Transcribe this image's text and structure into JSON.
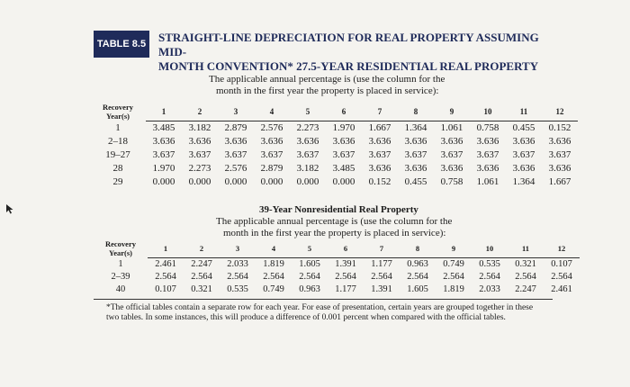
{
  "table_label": "TABLE 8.5",
  "title_line1": "STRAIGHT-LINE DEPRECIATION FOR REAL PROPERTY ASSUMING MID-",
  "title_line2": "MONTH CONVENTION* 27.5-YEAR RESIDENTIAL REAL PROPERTY",
  "residential": {
    "intro_line1": "The applicable annual percentage is (use the column for the",
    "intro_line2": "month in the first year the property is placed in service):",
    "stub_line1": "Recovery",
    "stub_line2": "Year(s)",
    "months": [
      "1",
      "2",
      "3",
      "4",
      "5",
      "6",
      "7",
      "8",
      "9",
      "10",
      "11",
      "12"
    ],
    "rows": [
      {
        "label": "1",
        "values": [
          "3.485",
          "3.182",
          "2.879",
          "2.576",
          "2.273",
          "1.970",
          "1.667",
          "1.364",
          "1.061",
          "0.758",
          "0.455",
          "0.152"
        ]
      },
      {
        "label": "2–18",
        "values": [
          "3.636",
          "3.636",
          "3.636",
          "3.636",
          "3.636",
          "3.636",
          "3.636",
          "3.636",
          "3.636",
          "3.636",
          "3.636",
          "3.636"
        ]
      },
      {
        "label": "19–27",
        "values": [
          "3.637",
          "3.637",
          "3.637",
          "3.637",
          "3.637",
          "3.637",
          "3.637",
          "3.637",
          "3.637",
          "3.637",
          "3.637",
          "3.637"
        ]
      },
      {
        "label": "28",
        "values": [
          "1.970",
          "2.273",
          "2.576",
          "2.879",
          "3.182",
          "3.485",
          "3.636",
          "3.636",
          "3.636",
          "3.636",
          "3.636",
          "3.636"
        ]
      },
      {
        "label": "29",
        "values": [
          "0.000",
          "0.000",
          "0.000",
          "0.000",
          "0.000",
          "0.000",
          "0.152",
          "0.455",
          "0.758",
          "1.061",
          "1.364",
          "1.667"
        ]
      }
    ]
  },
  "nonresidential": {
    "heading": "39-Year Nonresidential Real Property",
    "intro_line1": "The applicable annual percentage is (use the column for the",
    "intro_line2": "month in the first year the property is placed in service):",
    "stub_line1": "Recovery",
    "stub_line2": "Year(s)",
    "months": [
      "1",
      "2",
      "3",
      "4",
      "5",
      "6",
      "7",
      "8",
      "9",
      "10",
      "11",
      "12"
    ],
    "rows": [
      {
        "label": "1",
        "values": [
          "2.461",
          "2.247",
          "2.033",
          "1.819",
          "1.605",
          "1.391",
          "1.177",
          "0.963",
          "0.749",
          "0.535",
          "0.321",
          "0.107"
        ]
      },
      {
        "label": "2–39",
        "values": [
          "2.564",
          "2.564",
          "2.564",
          "2.564",
          "2.564",
          "2.564",
          "2.564",
          "2.564",
          "2.564",
          "2.564",
          "2.564",
          "2.564"
        ]
      },
      {
        "label": "40",
        "values": [
          "0.107",
          "0.321",
          "0.535",
          "0.749",
          "0.963",
          "1.177",
          "1.391",
          "1.605",
          "1.819",
          "2.033",
          "2.247",
          "2.461"
        ]
      }
    ]
  },
  "footnote_line1": "*The official tables contain a separate row for each year. For ease of presentation, certain years are grouped together in these",
  "footnote_line2": "two tables. In some instances, this will produce a difference of 0.001 percent when compared with the official tables.",
  "cursor_icon": "arrow-cursor-icon"
}
